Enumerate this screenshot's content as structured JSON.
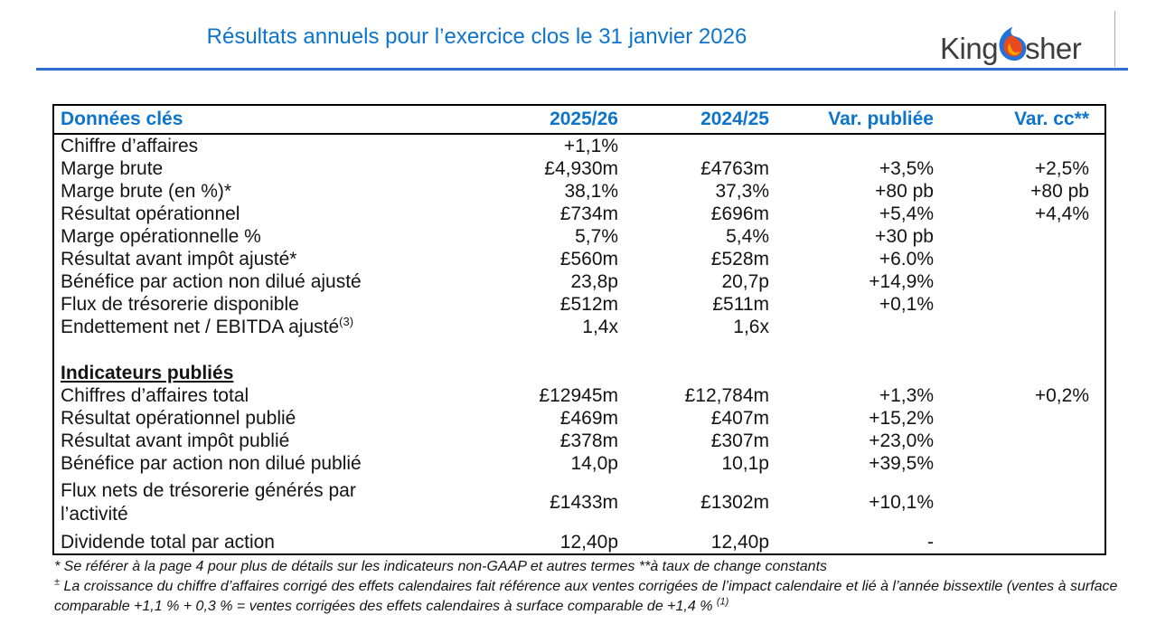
{
  "colors": {
    "accent_blue": "#0d74cc",
    "rule_blue": "#2f6fd0",
    "logo_gray": "#3d3d3d",
    "bird_blue": "#2272d9",
    "bird_red": "#e8491f",
    "bird_orange": "#f7a600"
  },
  "header": {
    "title": "Résultats annuels pour l’exercice clos le 31 janvier 2026",
    "logo_text_left": "King",
    "logo_text_right": "sher"
  },
  "table": {
    "columns": [
      "Données clés",
      "2025/26",
      "2024/25",
      "Var. publiée",
      "Var. cc**"
    ],
    "rows": [
      {
        "label": "Chiffre d’affaires",
        "values": [
          "+1,1%",
          "",
          "",
          ""
        ]
      },
      {
        "label": "Marge brute",
        "values": [
          "£4,930m",
          "£4763m",
          "+3,5%",
          "+2,5%"
        ]
      },
      {
        "label": "Marge brute (en %)*",
        "values": [
          "38,1%",
          "37,3%",
          "+80 pb",
          "+80 pb"
        ]
      },
      {
        "label": "Résultat opérationnel",
        "values": [
          "£734m",
          "£696m",
          "+5,4%",
          "+4,4%"
        ]
      },
      {
        "label": "Marge opérationnelle %",
        "values": [
          "5,7%",
          "5,4%",
          "+30 pb",
          ""
        ]
      },
      {
        "label": "Résultat avant impôt ajusté*",
        "values": [
          "£560m",
          "£528m",
          "+6.0%",
          ""
        ]
      },
      {
        "label": "Bénéfice par action non dilué ajusté",
        "values": [
          "23,8p",
          "20,7p",
          "+14,9%",
          ""
        ]
      },
      {
        "label": "Flux de trésorerie disponible",
        "values": [
          "£512m",
          "£511m",
          "+0,1%",
          ""
        ]
      },
      {
        "label": "Endettement net / EBITDA ajusté",
        "label_sup": "(3)",
        "values": [
          "1,4x",
          "1,6x",
          "",
          ""
        ]
      },
      {
        "type": "spacer"
      },
      {
        "type": "section",
        "label": "Indicateurs publiés"
      },
      {
        "label": "Chiffres d’affaires total",
        "values": [
          "£12945m",
          "£12,784m",
          "+1,3%",
          "+0,2%"
        ]
      },
      {
        "label": "Résultat opérationnel publié",
        "values": [
          "£469m",
          "£407m",
          "+15,2%",
          ""
        ]
      },
      {
        "label": "Résultat avant impôt publié",
        "values": [
          "£378m",
          "£307m",
          "+23,0%",
          ""
        ]
      },
      {
        "label": "Bénéfice par action non dilué publié",
        "values": [
          "14,0p",
          "10,1p",
          "+39,5%",
          ""
        ]
      },
      {
        "label": "Flux nets de trésorerie générés par\nl’activité",
        "tall": true,
        "values": [
          "£1433m",
          "£1302m",
          "+10,1%",
          ""
        ]
      },
      {
        "label": "Dividende total par action",
        "values": [
          "12,40p",
          "12,40p",
          "-",
          ""
        ]
      }
    ]
  },
  "footnotes": {
    "line1": "* Se référer à la page 4 pour plus de détails sur les indicateurs non-GAAP et autres termes **à taux de change constants",
    "line2_prefix": "±",
    "line2_text": " La croissance du chiffre d’affaires corrigé des effets calendaires fait référence aux ventes corrigées de l’impact calendaire et lié à l’année bissextile (ventes à surface comparable +1,1 % + 0,3 % = ventes corrigées des effets calendaires à surface comparable de +1,4 % ",
    "line2_sup": "(1)"
  }
}
